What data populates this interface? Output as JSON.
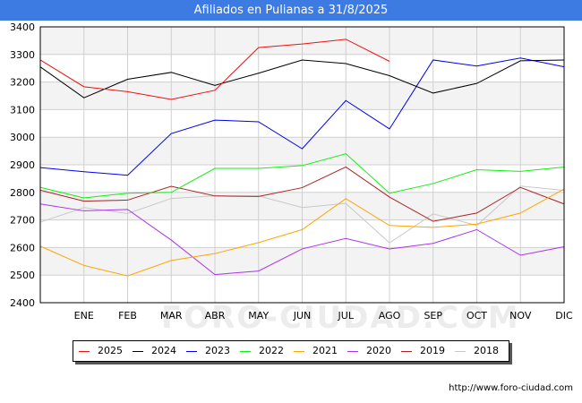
{
  "header": {
    "title": "Afiliados en Pulianas a 31/8/2025"
  },
  "watermark": "FORO-CIUDAD.COM",
  "footer": {
    "url": "http://www.foro-ciudad.com"
  },
  "chart_data": {
    "type": "line",
    "title": "Afiliados en Pulianas a 31/8/2025",
    "xlabel": "",
    "ylabel": "",
    "ylim": [
      2400,
      3400
    ],
    "yticks": [
      2400,
      2500,
      2600,
      2700,
      2800,
      2900,
      3000,
      3100,
      3200,
      3300,
      3400
    ],
    "ytick_labels": [
      "2400",
      "2500",
      "2600",
      "2700",
      "2800",
      "2900",
      "3000",
      "3100",
      "3200",
      "3300",
      "3400"
    ],
    "categories": [
      "",
      "ENE",
      "FEB",
      "MAR",
      "ABR",
      "MAY",
      "JUN",
      "JUL",
      "AGO",
      "SEP",
      "OCT",
      "NOV",
      "DIC"
    ],
    "grid": true,
    "legend_position": "bottom",
    "series": [
      {
        "name": "2025",
        "color": "#ee1111",
        "values": [
          3280,
          3183,
          3165,
          3137,
          3170,
          3325,
          3338,
          3355,
          3275,
          null,
          null,
          null,
          null
        ]
      },
      {
        "name": "2024",
        "color": "#000000",
        "values": [
          3255,
          3143,
          3210,
          3235,
          3188,
          3232,
          3280,
          3267,
          3223,
          3160,
          3195,
          3277,
          3280
        ]
      },
      {
        "name": "2023",
        "color": "#0000ee",
        "values": [
          2890,
          2875,
          2862,
          3013,
          3062,
          3056,
          2958,
          3133,
          3030,
          3280,
          3258,
          3287,
          3255
        ]
      },
      {
        "name": "2022",
        "color": "#11ee11",
        "values": [
          2818,
          2780,
          2797,
          2800,
          2887,
          2887,
          2897,
          2940,
          2797,
          2832,
          2882,
          2876,
          2892
        ]
      },
      {
        "name": "2021",
        "color": "#ffa500",
        "values": [
          2605,
          2535,
          2497,
          2553,
          2578,
          2618,
          2665,
          2777,
          2680,
          2673,
          2685,
          2725,
          2812
        ]
      },
      {
        "name": "2020",
        "color": "#aa33ee",
        "values": [
          2758,
          2733,
          2738,
          2627,
          2502,
          2515,
          2595,
          2633,
          2595,
          2615,
          2665,
          2572,
          2603
        ]
      },
      {
        "name": "2019",
        "color": "#aa2222",
        "values": [
          2808,
          2768,
          2772,
          2822,
          2787,
          2785,
          2817,
          2892,
          2783,
          2695,
          2725,
          2818,
          2758
        ]
      },
      {
        "name": "2018",
        "color": "#c8c8c8",
        "values": [
          2692,
          2745,
          2723,
          2778,
          2787,
          2787,
          2745,
          2760,
          2617,
          2722,
          2680,
          2823,
          2807
        ]
      }
    ]
  }
}
